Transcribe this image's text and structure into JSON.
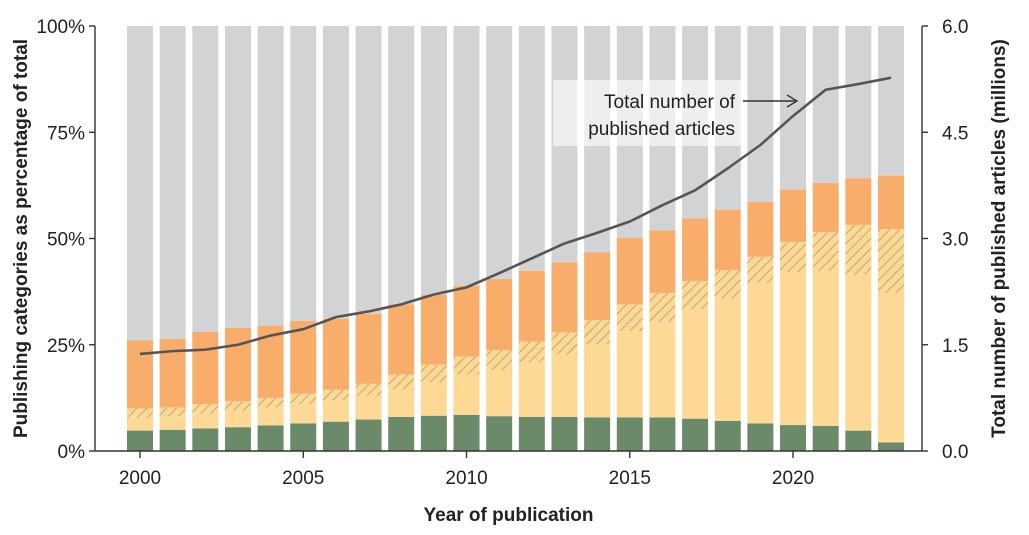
{
  "chart_data": {
    "type": "bar",
    "stacked": true,
    "x": [
      2000,
      2001,
      2002,
      2003,
      2004,
      2005,
      2006,
      2007,
      2008,
      2009,
      2010,
      2011,
      2012,
      2013,
      2014,
      2015,
      2016,
      2017,
      2018,
      2019,
      2020,
      2021,
      2022,
      2023
    ],
    "x_ticks": [
      "2000",
      "2005",
      "2010",
      "2015",
      "2020"
    ],
    "xlabel": "Year of publication",
    "ylabel_left": "Publishing categories as percentage of total",
    "ylabel_right": "Total number of published articles (millions)",
    "y_ticks_left": [
      "0%",
      "25%",
      "50%",
      "75%",
      "100%"
    ],
    "y_ticks_right": [
      "0.0",
      "1.5",
      "3.0",
      "4.5",
      "6.0"
    ],
    "ylim_left": [
      0,
      100
    ],
    "ylim_right": [
      0,
      6.0
    ],
    "grid": false,
    "series": [
      {
        "color": "#6b8a6a",
        "pattern": "solid",
        "values": [
          4.8,
          5.0,
          5.3,
          5.6,
          6.0,
          6.5,
          6.9,
          7.4,
          8.0,
          8.3,
          8.5,
          8.2,
          8.0,
          8.0,
          7.9,
          7.9,
          7.9,
          7.6,
          7.1,
          6.5,
          6.1,
          5.9,
          4.8,
          2.0
        ]
      },
      {
        "color": "#fdd995",
        "pattern": "solid",
        "values": [
          3.0,
          3.2,
          3.5,
          3.8,
          4.2,
          4.5,
          5.0,
          5.6,
          6.5,
          7.8,
          9.5,
          10.8,
          12.8,
          14.7,
          17.2,
          20.3,
          22.5,
          25.8,
          28.7,
          33.0,
          36.0,
          36.5,
          36.7,
          35.2
        ]
      },
      {
        "color": "#fdd995",
        "pattern": "hatched",
        "values": [
          2.2,
          2.0,
          2.2,
          2.3,
          2.3,
          2.5,
          2.5,
          2.8,
          3.5,
          4.2,
          4.2,
          4.7,
          4.9,
          5.2,
          5.7,
          6.3,
          6.8,
          6.6,
          6.8,
          6.2,
          7.1,
          9.1,
          11.7,
          15.0
        ]
      },
      {
        "color": "#f8ae6a",
        "pattern": "solid",
        "values": [
          16.0,
          16.2,
          17.0,
          17.3,
          17.0,
          17.1,
          16.7,
          16.5,
          16.5,
          16.4,
          16.7,
          16.8,
          16.7,
          16.5,
          15.9,
          15.6,
          14.7,
          14.7,
          14.2,
          12.9,
          12.3,
          11.6,
          11.0,
          12.6
        ]
      },
      {
        "color": "#d2d3d5",
        "pattern": "solid",
        "values": [
          74.0,
          73.6,
          72.0,
          71.0,
          70.5,
          69.4,
          68.9,
          67.7,
          65.5,
          63.3,
          61.1,
          59.5,
          57.6,
          55.6,
          53.3,
          49.9,
          48.1,
          45.3,
          43.2,
          41.4,
          38.5,
          36.9,
          35.8,
          35.2
        ]
      }
    ],
    "line": {
      "color": "#555555",
      "axis": "right",
      "values": [
        1.37,
        1.41,
        1.43,
        1.5,
        1.63,
        1.72,
        1.89,
        1.97,
        2.07,
        2.21,
        2.31,
        2.51,
        2.72,
        2.93,
        3.08,
        3.24,
        3.47,
        3.68,
        3.99,
        4.32,
        4.73,
        5.1,
        5.18,
        5.27
      ]
    },
    "annotation": {
      "line1": "Total number of",
      "line2": "published articles"
    }
  }
}
